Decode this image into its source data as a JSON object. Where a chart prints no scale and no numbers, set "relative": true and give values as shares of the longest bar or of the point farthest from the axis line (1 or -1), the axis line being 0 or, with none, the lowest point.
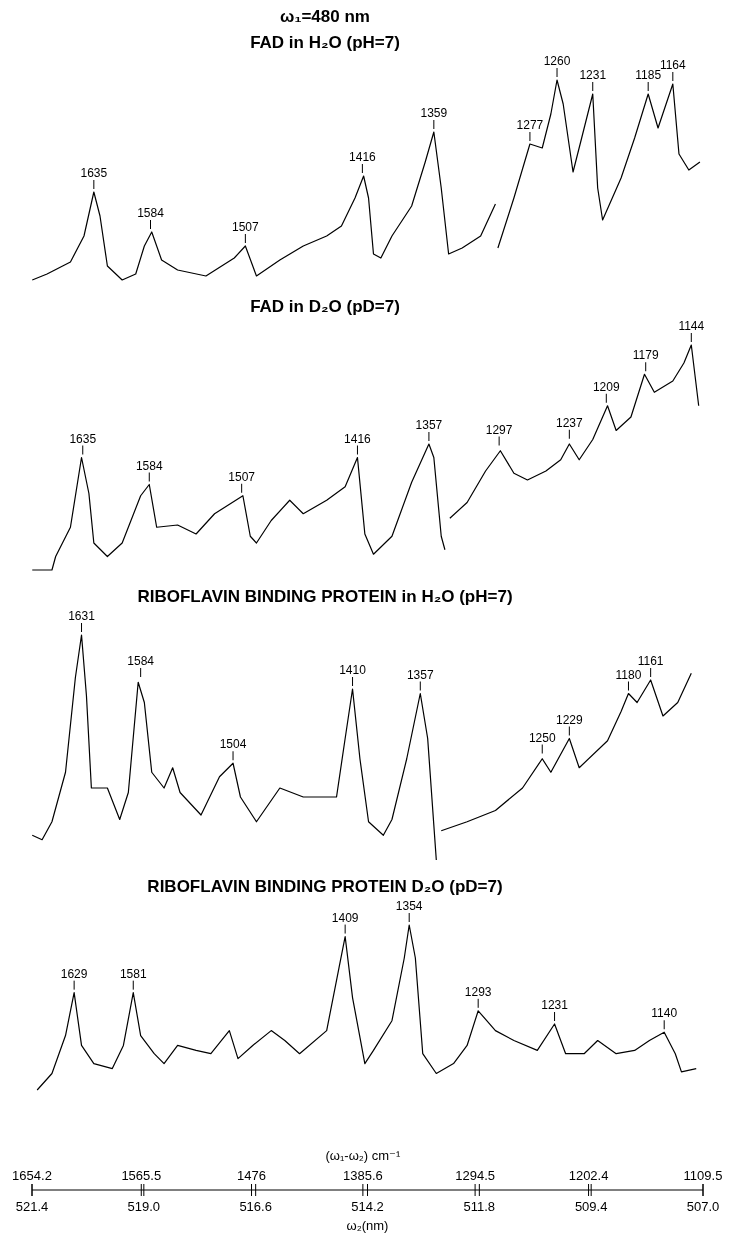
{
  "chart_data": [
    {
      "type": "line",
      "title": "ω₁=480 nm",
      "subtitle": "FAD in H₂O (pH=7)",
      "relative": true,
      "xlim": [
        1654.2,
        1109.5
      ],
      "tick_labels": false,
      "series": [
        {
          "color": "#000000",
          "x": [
            1654,
            1642,
            1623,
            1612,
            1604,
            1599,
            1593,
            1581,
            1570,
            1563,
            1557,
            1549,
            1536,
            1513,
            1490,
            1481,
            1472,
            1453,
            1434,
            1415,
            1403,
            1392,
            1385,
            1381,
            1377,
            1371,
            1362,
            1346,
            1335,
            1328,
            1322,
            1316,
            1305,
            1290,
            1278,
            1277,
            1276,
            1263,
            1250,
            1240,
            1233,
            1228,
            1223,
            1215,
            1208,
            1199,
            1195,
            1191,
            1176,
            1165,
            1154,
            1146,
            1134,
            1129,
            1121,
            1112
          ],
          "values": [
            0,
            0.03,
            0.09,
            0.22,
            0.44,
            0.32,
            0.07,
            0,
            0.03,
            0.17,
            0.24,
            0.1,
            0.05,
            0.02,
            0.11,
            0.17,
            0.02,
            0.1,
            0.17,
            0.22,
            0.27,
            0.41,
            0.52,
            0.41,
            0.13,
            0.11,
            0.22,
            0.37,
            0.59,
            0.74,
            0.46,
            0.13,
            0.16,
            0.22,
            0.38,
            null,
            0.16,
            0.41,
            0.68,
            0.66,
            0.83,
            1,
            0.88,
            0.54,
            0.71,
            0.93,
            0.46,
            0.3,
            0.51,
            0.71,
            0.93,
            0.76,
            0.98,
            0.63,
            0.55,
            0.59
          ]
        }
      ],
      "annotations": [
        {
          "text": "1635",
          "x": 1604,
          "y": 0.44
        },
        {
          "text": "1584",
          "x": 1558,
          "y": 0.24
        },
        {
          "text": "1507",
          "x": 1481,
          "y": 0.17
        },
        {
          "text": "1416",
          "x": 1386,
          "y": 0.52
        },
        {
          "text": "1359",
          "x": 1328,
          "y": 0.74
        },
        {
          "text": "1277",
          "x": 1250,
          "y": 0.68
        },
        {
          "text": "1260",
          "x": 1228,
          "y": 1
        },
        {
          "text": "1231",
          "x": 1199,
          "y": 0.93
        },
        {
          "text": "1185",
          "x": 1154,
          "y": 0.93
        },
        {
          "text": "1164",
          "x": 1134,
          "y": 0.98
        }
      ]
    },
    {
      "type": "line",
      "title": "FAD in D₂O (pD=7)",
      "relative": true,
      "xlim": [
        1654.2,
        1109.5
      ],
      "tick_labels": false,
      "series": [
        {
          "color": "#000000",
          "x": [
            1654,
            1638,
            1635,
            1623,
            1614,
            1608,
            1604,
            1593,
            1581,
            1566,
            1559,
            1553,
            1536,
            1521,
            1506,
            1483,
            1477,
            1472,
            1460,
            1445,
            1434,
            1415,
            1400,
            1390,
            1384,
            1377,
            1362,
            1356,
            1346,
            1332,
            1328,
            1322,
            1319,
            1318,
            1315,
            1301,
            1286,
            1274,
            1263,
            1252,
            1237,
            1225,
            1218,
            1210,
            1199,
            1187,
            1180,
            1168,
            1157,
            1149,
            1134,
            1125,
            1119,
            1113
          ],
          "values": [
            0,
            0,
            0.06,
            0.19,
            0.5,
            0.34,
            0.12,
            0.06,
            0.12,
            0.33,
            0.38,
            0.19,
            0.2,
            0.16,
            0.25,
            0.33,
            0.15,
            0.12,
            0.22,
            0.31,
            0.25,
            0.31,
            0.37,
            0.5,
            0.16,
            0.07,
            0.15,
            0.24,
            0.39,
            0.56,
            0.5,
            0.15,
            0.09,
            null,
            0.23,
            0.3,
            0.44,
            0.53,
            0.43,
            0.4,
            0.44,
            0.49,
            0.56,
            0.49,
            0.58,
            0.73,
            0.62,
            0.68,
            0.87,
            0.79,
            0.84,
            0.92,
            1,
            0.73
          ]
        }
      ],
      "annotations": [
        {
          "text": "1635",
          "x": 1613,
          "y": 0.5
        },
        {
          "text": "1584",
          "x": 1559,
          "y": 0.38
        },
        {
          "text": "1507",
          "x": 1484,
          "y": 0.33
        },
        {
          "text": "1416",
          "x": 1390,
          "y": 0.5
        },
        {
          "text": "1357",
          "x": 1332,
          "y": 0.56
        },
        {
          "text": "1297",
          "x": 1275,
          "y": 0.54
        },
        {
          "text": "1237",
          "x": 1218,
          "y": 0.57
        },
        {
          "text": "1209",
          "x": 1188,
          "y": 0.73
        },
        {
          "text": "1179",
          "x": 1156,
          "y": 0.87
        },
        {
          "text": "1144",
          "x": 1119,
          "y": 1
        }
      ]
    },
    {
      "type": "line",
      "title": "RIBOFLAVIN BINDING PROTEIN in H₂O (pH=7)",
      "relative": true,
      "xlim": [
        1654.2,
        1109.5
      ],
      "tick_labels": false,
      "series": [
        {
          "color": "#000000",
          "x": [
            1654,
            1646,
            1638,
            1627,
            1619,
            1614,
            1610,
            1606,
            1593,
            1583,
            1576,
            1568,
            1563,
            1557,
            1547,
            1540,
            1534,
            1517,
            1502,
            1491,
            1485,
            1472,
            1453,
            1434,
            1407,
            1400,
            1394,
            1388,
            1381,
            1369,
            1362,
            1350,
            1339,
            1333,
            1326,
            1324,
            1322,
            1301,
            1278,
            1256,
            1240,
            1233,
            1218,
            1210,
            1187,
            1176,
            1170,
            1163,
            1152,
            1142,
            1130,
            1119
          ],
          "values": [
            0.11,
            0.09,
            0.17,
            0.39,
            0.81,
            1,
            0.73,
            0.32,
            0.32,
            0.18,
            0.3,
            0.79,
            0.7,
            0.39,
            0.32,
            0.41,
            0.3,
            0.2,
            0.37,
            0.43,
            0.28,
            0.17,
            0.32,
            0.28,
            0.28,
            0.54,
            0.76,
            0.45,
            0.17,
            0.11,
            0.18,
            0.45,
            0.74,
            0.54,
            0,
            null,
            0.13,
            0.17,
            0.22,
            0.32,
            0.45,
            0.39,
            0.54,
            0.41,
            0.53,
            0.66,
            0.74,
            0.7,
            0.8,
            0.64,
            0.7,
            0.83
          ]
        }
      ],
      "annotations": [
        {
          "text": "1631",
          "x": 1614,
          "y": 1
        },
        {
          "text": "1584",
          "x": 1566,
          "y": 0.8
        },
        {
          "text": "1504",
          "x": 1491,
          "y": 0.43
        },
        {
          "text": "1410",
          "x": 1394,
          "y": 0.76
        },
        {
          "text": "1357",
          "x": 1339,
          "y": 0.74
        },
        {
          "text": "1250",
          "x": 1240,
          "y": 0.46
        },
        {
          "text": "1229",
          "x": 1218,
          "y": 0.54
        },
        {
          "text": "1180",
          "x": 1170,
          "y": 0.74
        },
        {
          "text": "1161",
          "x": 1152,
          "y": 0.8
        }
      ]
    },
    {
      "type": "line",
      "title": "RIBOFLAVIN BINDING PROTEIN D₂O (pD=7)",
      "relative": true,
      "xlim": [
        1654.2,
        1109.5
      ],
      "xlabel": "(ω₁-ω₂) cm⁻¹",
      "xticks": [
        1654.2,
        1565.5,
        1476,
        1385.6,
        1294.5,
        1202.4,
        1109.5
      ],
      "x2label": "ω₂(nm)",
      "x2lim": [
        521.4,
        507.0
      ],
      "x2ticks": [
        521.4,
        {
          "value": 519,
          "label": "519.0"
        },
        516.6,
        514.2,
        511.8,
        509.4,
        {
          "value": 507,
          "label": "507.0"
        }
      ],
      "series": [
        {
          "color": "#000000",
          "x": [
            1650,
            1638,
            1627,
            1620,
            1614,
            1604,
            1589,
            1580,
            1572,
            1566,
            1555,
            1547,
            1536,
            1521,
            1509,
            1494,
            1487,
            1475,
            1460,
            1449,
            1437,
            1415,
            1405,
            1400,
            1394,
            1384,
            1377,
            1362,
            1352,
            1348,
            1343,
            1337,
            1326,
            1312,
            1301,
            1292,
            1278,
            1263,
            1244,
            1230,
            1221,
            1206,
            1195,
            1180,
            1165,
            1153,
            1141,
            1132,
            1127,
            1115
          ],
          "values": [
            0,
            0.1,
            0.33,
            0.59,
            0.27,
            0.16,
            0.13,
            0.27,
            0.59,
            0.33,
            0.22,
            0.16,
            0.27,
            0.24,
            0.22,
            0.36,
            0.19,
            0.27,
            0.36,
            0.3,
            0.22,
            0.36,
            0.74,
            0.93,
            0.56,
            0.16,
            0.24,
            0.42,
            0.8,
            1,
            0.8,
            0.22,
            0.1,
            0.16,
            0.27,
            0.48,
            0.36,
            0.3,
            0.24,
            0.4,
            0.22,
            0.22,
            0.3,
            0.22,
            0.24,
            0.3,
            0.35,
            0.22,
            0.11,
            0.13
          ]
        }
      ],
      "annotations": [
        {
          "text": "1629",
          "x": 1620,
          "y": 0.59
        },
        {
          "text": "1581",
          "x": 1572,
          "y": 0.59
        },
        {
          "text": "1409",
          "x": 1400,
          "y": 0.93
        },
        {
          "text": "1354",
          "x": 1348,
          "y": 1
        },
        {
          "text": "1293",
          "x": 1292,
          "y": 0.48
        },
        {
          "text": "1231",
          "x": 1230,
          "y": 0.4
        },
        {
          "text": "1140",
          "x": 1141,
          "y": 0.35
        }
      ]
    }
  ]
}
